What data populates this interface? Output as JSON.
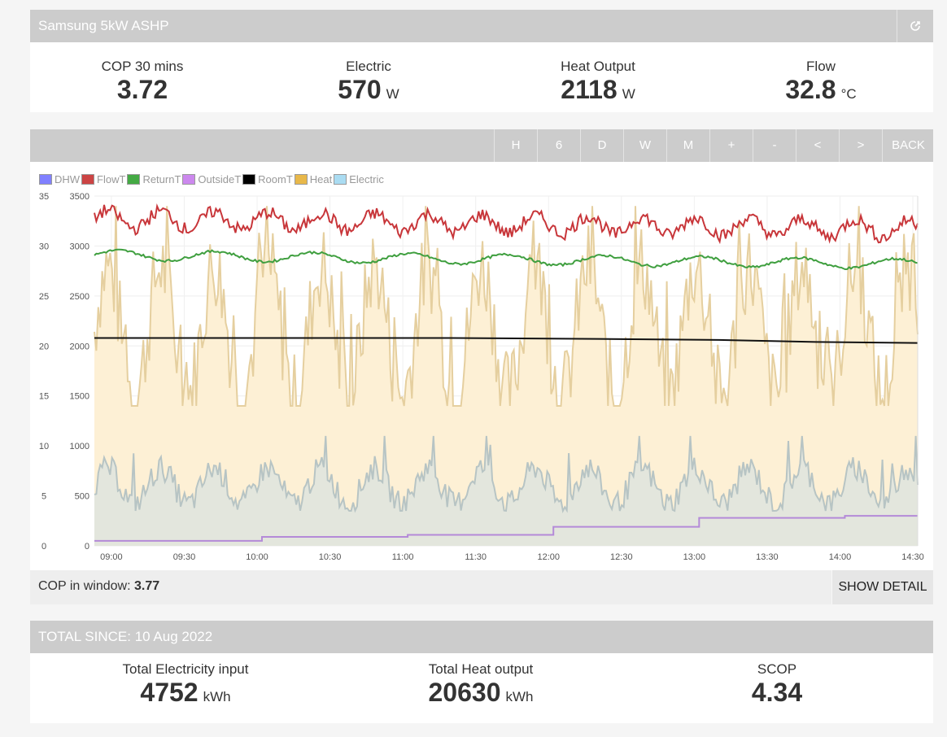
{
  "header": {
    "title": "Samsung 5kW ASHP",
    "popout_icon": "external-link-icon"
  },
  "stats": [
    {
      "label": "COP 30 mins",
      "value": "3.72",
      "unit": ""
    },
    {
      "label": "Electric",
      "value": "570",
      "unit": "W"
    },
    {
      "label": "Heat Output",
      "value": "2118",
      "unit": "W"
    },
    {
      "label": "Flow",
      "value": "32.8",
      "unit": "°C"
    }
  ],
  "graph_buttons": [
    "H",
    "6",
    "D",
    "W",
    "M",
    "+",
    "-",
    "<",
    ">",
    "BACK"
  ],
  "legend": [
    {
      "name": "DHW",
      "color": "#8080ff"
    },
    {
      "name": "FlowT",
      "color": "#cc4444"
    },
    {
      "name": "ReturnT",
      "color": "#44aa44"
    },
    {
      "name": "OutsideT",
      "color": "#cc88ee"
    },
    {
      "name": "RoomT",
      "color": "#000000"
    },
    {
      "name": "Heat",
      "color": "#e8b84a"
    },
    {
      "name": "Electric",
      "color": "#aadcf2"
    }
  ],
  "chart_data": {
    "type": "line",
    "left_axis_ticks": [
      "35",
      "30",
      "25",
      "20",
      "15",
      "10",
      "5",
      "0"
    ],
    "right_axis_ticks": [
      "3500",
      "3000",
      "2500",
      "2000",
      "1500",
      "1000",
      "500",
      "0"
    ],
    "x_ticks": [
      "09:00",
      "09:30",
      "10:00",
      "10:30",
      "11:00",
      "11:30",
      "12:00",
      "12:30",
      "13:00",
      "13:30",
      "14:00",
      "14:30"
    ],
    "x_minutes_start": 533,
    "x_minutes_end": 872,
    "left_ylim": [
      0,
      35
    ],
    "right_ylim": [
      0,
      3500
    ],
    "series": [
      {
        "name": "FlowT",
        "axis": "left",
        "approx_level": 32.5,
        "range": [
          30,
          34
        ]
      },
      {
        "name": "ReturnT",
        "axis": "left",
        "approx_level": 29,
        "range": [
          28.5,
          29.8
        ]
      },
      {
        "name": "RoomT",
        "axis": "left",
        "points": [
          [
            533,
            20.8
          ],
          [
            600,
            20.8
          ],
          [
            680,
            20.8
          ],
          [
            740,
            20.7
          ],
          [
            790,
            20.6
          ],
          [
            830,
            20.4
          ],
          [
            872,
            20.3
          ]
        ]
      },
      {
        "name": "OutsideT",
        "axis": "left",
        "steps": [
          [
            533,
            0.5
          ],
          [
            602,
            0.9
          ],
          [
            662,
            1.1
          ],
          [
            722,
            1.9
          ],
          [
            782,
            2.8
          ],
          [
            842,
            3.0
          ],
          [
            872,
            3.0
          ]
        ]
      },
      {
        "name": "Heat",
        "axis": "right",
        "range": [
          1400,
          3400
        ]
      },
      {
        "name": "Electric",
        "axis": "right",
        "range": [
          350,
          1100
        ]
      }
    ],
    "grid": true
  },
  "cop_window": {
    "label": "COP in window:",
    "value": "3.77",
    "button": "SHOW DETAIL"
  },
  "totals": {
    "title": "TOTAL SINCE: 10 Aug 2022",
    "items": [
      {
        "label": "Total Electricity input",
        "value": "4752",
        "unit": "kWh"
      },
      {
        "label": "Total Heat output",
        "value": "20630",
        "unit": "kWh"
      },
      {
        "label": "SCOP",
        "value": "4.34",
        "unit": ""
      }
    ]
  }
}
